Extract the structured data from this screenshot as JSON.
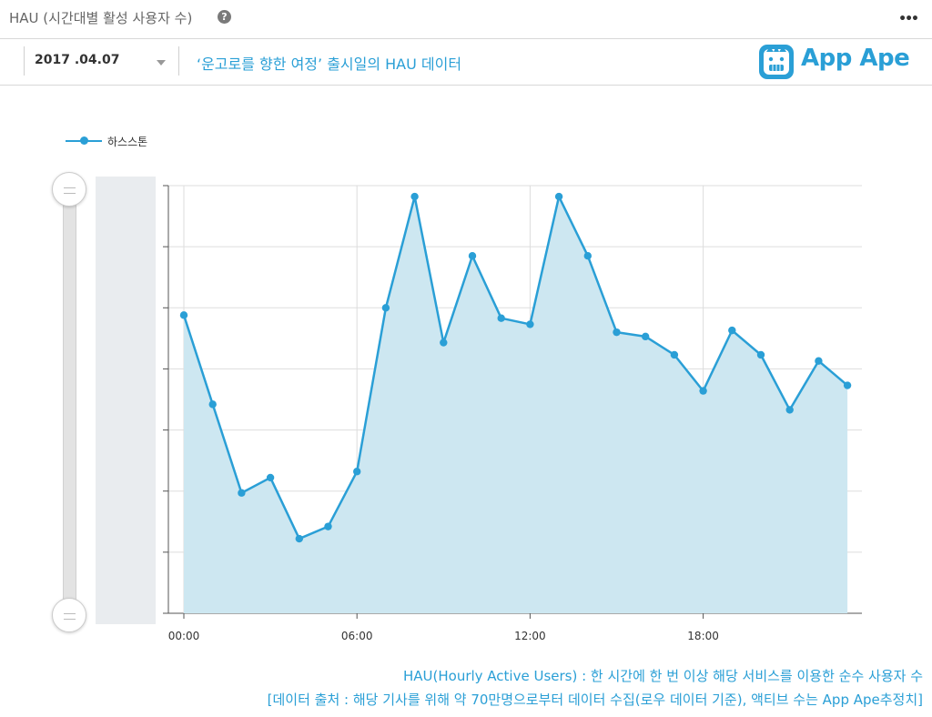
{
  "header": {
    "title": "HAU (시간대별 활성 사용자 수)",
    "help_icon": "question-circle-icon",
    "more_icon": "more-horizontal-icon"
  },
  "filter": {
    "date": "2017 .04.07",
    "subtitle": "‘운고로를 향한 여정’ 출시일의 HAU 데이터"
  },
  "brand": {
    "logo_text": "App Ape",
    "color": "#2a9fd6"
  },
  "chart_data": {
    "type": "area",
    "x": [
      "00:00",
      "01:00",
      "02:00",
      "03:00",
      "04:00",
      "05:00",
      "06:00",
      "07:00",
      "08:00",
      "09:00",
      "10:00",
      "11:00",
      "12:00",
      "13:00",
      "14:00",
      "15:00",
      "16:00",
      "17:00",
      "18:00",
      "19:00",
      "20:00",
      "21:00",
      "22:00",
      "23:00"
    ],
    "xtick_labels": [
      "00:00",
      "06:00",
      "12:00",
      "18:00"
    ],
    "series": [
      {
        "name": "하스스톤",
        "color": "#2a9fd6",
        "fill": "#cde7f1",
        "values": [
          4.88,
          3.42,
          1.97,
          2.22,
          1.22,
          1.42,
          2.32,
          5.0,
          6.82,
          4.43,
          5.85,
          4.83,
          4.73,
          6.82,
          5.85,
          4.6,
          4.53,
          4.23,
          3.64,
          4.63,
          4.23,
          3.33,
          4.13,
          3.73
        ]
      }
    ],
    "ylim": [
      0,
      7
    ],
    "y_tick_count": 7,
    "grid": true,
    "legend": "top-left"
  },
  "footnotes": [
    "HAU(Hourly Active Users) : 한 시간에 한 번 이상 해당 서비스를 이용한 순수 사용자 수",
    "[데이터 출처 : 해당 기사를 위해 약 70만명으로부터 데이터 수집(로우 데이터 기준), 액티브 수는 App Ape추정치]"
  ]
}
